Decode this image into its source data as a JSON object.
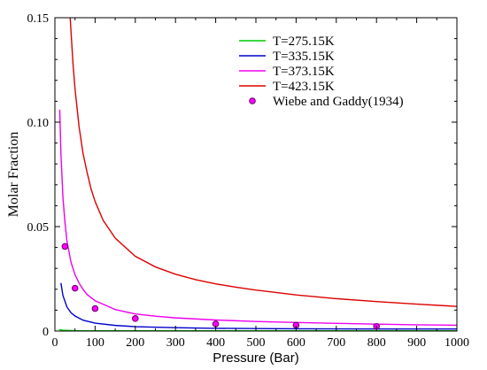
{
  "chart_data": {
    "type": "line",
    "xlabel": "Pressure (Bar)",
    "ylabel": "Molar Fraction",
    "xlim": [
      0,
      1000
    ],
    "ylim": [
      0,
      0.15
    ],
    "x_ticks": [
      0,
      100,
      200,
      300,
      400,
      500,
      600,
      700,
      800,
      900,
      1000
    ],
    "x_tick_labels": [
      "0",
      "100",
      "200",
      "300",
      "400",
      "500",
      "600",
      "700",
      "800",
      "900",
      "1000"
    ],
    "minor_x_step": 50,
    "y_ticks": [
      0,
      0.05,
      0.1,
      0.15
    ],
    "y_tick_labels": [
      "0",
      "0.05",
      "0.10",
      "0.15"
    ],
    "minor_y_step": 0.01,
    "grid": false,
    "legend_position": "top-right",
    "series": [
      {
        "name": "T=275.15K",
        "type": "line",
        "color": "#00cc00",
        "points": [
          [
            10,
            0.0007
          ],
          [
            20,
            0.0004
          ],
          [
            50,
            0.0002
          ],
          [
            100,
            0.00012
          ],
          [
            200,
            0.0001
          ],
          [
            400,
            0.0001
          ],
          [
            600,
            0.0001
          ],
          [
            800,
            0.0001
          ],
          [
            1000,
            0.0001
          ]
        ]
      },
      {
        "name": "T=335.15K",
        "type": "line",
        "color": "#0000cc",
        "points": [
          [
            15,
            0.023
          ],
          [
            20,
            0.017
          ],
          [
            30,
            0.0115
          ],
          [
            40,
            0.0088
          ],
          [
            50,
            0.0072
          ],
          [
            70,
            0.0052
          ],
          [
            100,
            0.0038
          ],
          [
            150,
            0.0027
          ],
          [
            200,
            0.0021
          ],
          [
            300,
            0.0016
          ],
          [
            400,
            0.0013
          ],
          [
            500,
            0.0012
          ],
          [
            600,
            0.0011
          ],
          [
            700,
            0.00105
          ],
          [
            800,
            0.001
          ],
          [
            900,
            0.001
          ],
          [
            1000,
            0.001
          ]
        ]
      },
      {
        "name": "T=373.15K",
        "type": "line",
        "color": "#ee00ee",
        "points": [
          [
            12,
            0.106
          ],
          [
            15,
            0.085
          ],
          [
            20,
            0.064
          ],
          [
            25,
            0.052
          ],
          [
            30,
            0.043
          ],
          [
            40,
            0.033
          ],
          [
            50,
            0.027
          ],
          [
            60,
            0.023
          ],
          [
            70,
            0.02
          ],
          [
            80,
            0.0175
          ],
          [
            100,
            0.0145
          ],
          [
            150,
            0.0103
          ],
          [
            200,
            0.0082
          ],
          [
            250,
            0.0071
          ],
          [
            300,
            0.0063
          ],
          [
            400,
            0.0053
          ],
          [
            500,
            0.0046
          ],
          [
            600,
            0.0041
          ],
          [
            700,
            0.0037
          ],
          [
            800,
            0.0033
          ],
          [
            900,
            0.003
          ],
          [
            1000,
            0.0028
          ]
        ]
      },
      {
        "name": "T=423.15K",
        "type": "line",
        "color": "#dd0000",
        "points": [
          [
            38,
            0.15
          ],
          [
            45,
            0.128
          ],
          [
            50,
            0.116
          ],
          [
            60,
            0.098
          ],
          [
            70,
            0.085
          ],
          [
            80,
            0.076
          ],
          [
            90,
            0.068
          ],
          [
            100,
            0.062
          ],
          [
            120,
            0.053
          ],
          [
            150,
            0.0445
          ],
          [
            200,
            0.0358
          ],
          [
            250,
            0.0307
          ],
          [
            300,
            0.0272
          ],
          [
            350,
            0.0246
          ],
          [
            400,
            0.0226
          ],
          [
            450,
            0.021
          ],
          [
            500,
            0.0196
          ],
          [
            600,
            0.0173
          ],
          [
            700,
            0.0155
          ],
          [
            800,
            0.0141
          ],
          [
            900,
            0.0129
          ],
          [
            1000,
            0.0118
          ]
        ]
      },
      {
        "name": "Wiebe and Gaddy(1934)",
        "type": "scatter",
        "color": "#ff00ff",
        "edge_color": "#660066",
        "points": [
          [
            25,
            0.0405
          ],
          [
            50,
            0.0205
          ],
          [
            100,
            0.0108
          ],
          [
            200,
            0.006
          ],
          [
            400,
            0.0034
          ],
          [
            600,
            0.0028
          ],
          [
            800,
            0.0022
          ]
        ]
      }
    ]
  }
}
